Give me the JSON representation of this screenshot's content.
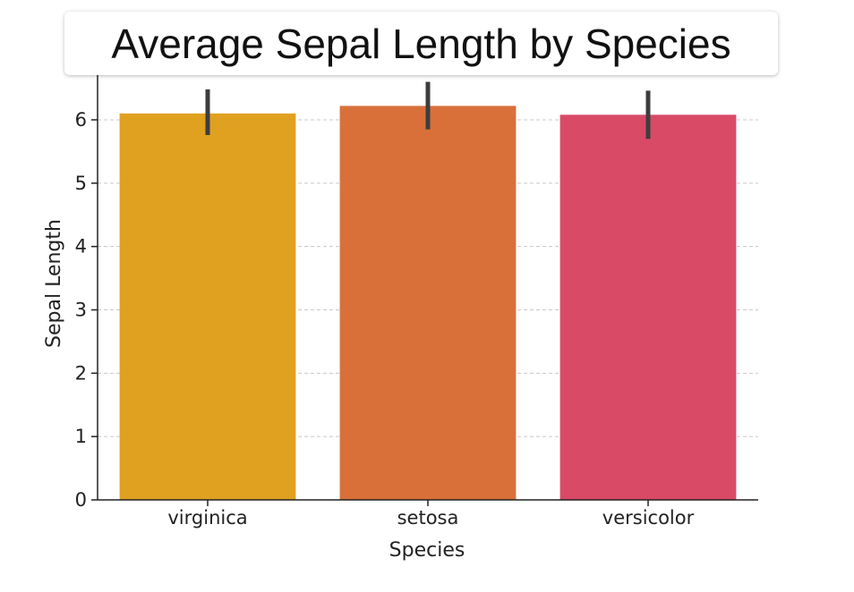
{
  "chart_data": {
    "type": "bar",
    "title": "Average Sepal Length by Species",
    "xlabel": "Species",
    "ylabel": "Sepal Length",
    "categories": [
      "virginica",
      "setosa",
      "versicolor"
    ],
    "values": [
      6.1,
      6.22,
      6.08
    ],
    "error_low": [
      5.76,
      5.85,
      5.7
    ],
    "error_high": [
      6.48,
      6.6,
      6.46
    ],
    "ylim": [
      0,
      6.6
    ],
    "yticks": [
      "0",
      "1",
      "2",
      "3",
      "4",
      "5",
      "6"
    ],
    "grid": "horizontal-dashed",
    "colors": [
      "#e0a020",
      "#d9703a",
      "#d94a66"
    ],
    "errorbar_color": "#3d3d3d"
  }
}
